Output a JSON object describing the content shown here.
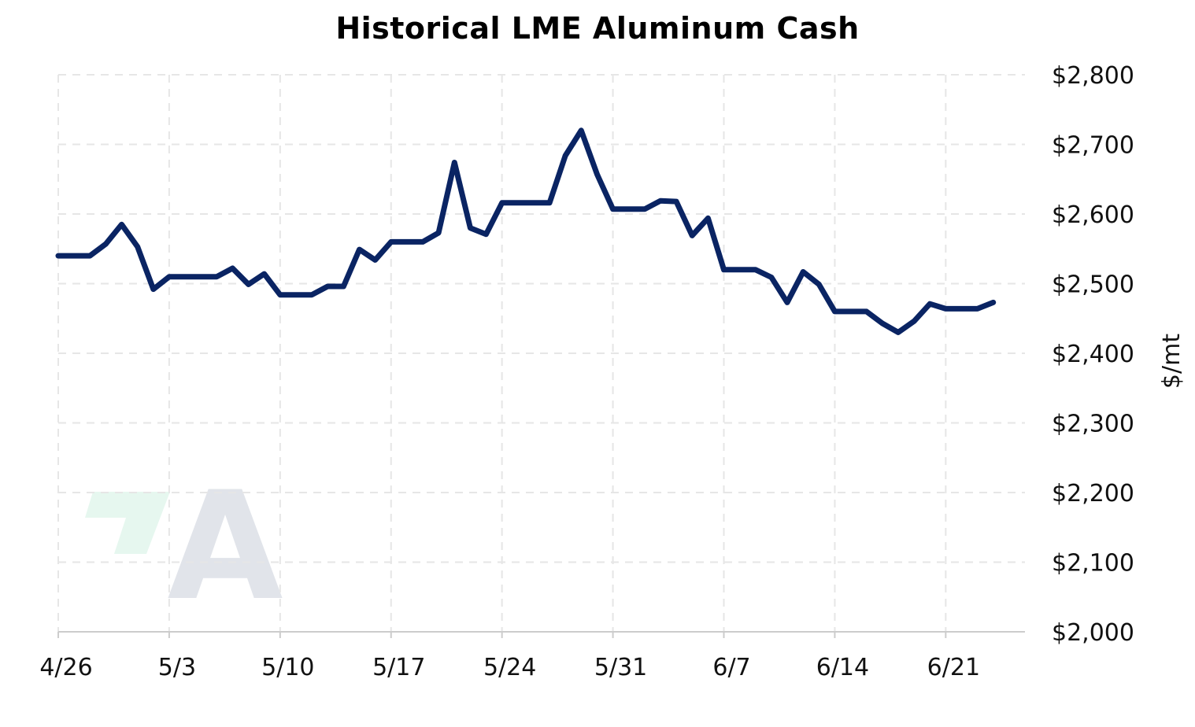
{
  "chart_data": {
    "type": "line",
    "title": "Historical LME Aluminum Cash",
    "xlabel": "",
    "ylabel": "$/mt",
    "ylim": [
      2000,
      2800
    ],
    "y_ticks": [
      2000,
      2100,
      2200,
      2300,
      2400,
      2500,
      2600,
      2700,
      2800
    ],
    "y_tick_labels": [
      "$2,000",
      "$2,100",
      "$2,200",
      "$2,300",
      "$2,400",
      "$2,500",
      "$2,600",
      "$2,700",
      "$2,800"
    ],
    "y_axis_side": "right",
    "x_ticks": [
      "2024-04-26",
      "2024-05-03",
      "2024-05-10",
      "2024-05-17",
      "2024-05-24",
      "2024-05-31",
      "2024-06-07",
      "2024-06-14",
      "2024-06-21"
    ],
    "x_tick_labels": [
      "4/26",
      "5/3",
      "5/10",
      "5/17",
      "5/24",
      "5/31",
      "6/7",
      "6/14",
      "6/21"
    ],
    "xlim": [
      "2024-04-26",
      "2024-06-26"
    ],
    "grid": true,
    "legend": "none",
    "series": [
      {
        "color": "#0a2463",
        "points": [
          [
            "2024-04-26",
            2540
          ],
          [
            "2024-04-27",
            2540
          ],
          [
            "2024-04-28",
            2540
          ],
          [
            "2024-04-29",
            2557
          ],
          [
            "2024-04-30",
            2585
          ],
          [
            "2024-05-01",
            2553
          ],
          [
            "2024-05-02",
            2492
          ],
          [
            "2024-05-03",
            2510
          ],
          [
            "2024-05-04",
            2510
          ],
          [
            "2024-05-05",
            2510
          ],
          [
            "2024-05-06",
            2510
          ],
          [
            "2024-05-07",
            2522
          ],
          [
            "2024-05-08",
            2499
          ],
          [
            "2024-05-09",
            2514
          ],
          [
            "2024-05-10",
            2484
          ],
          [
            "2024-05-11",
            2484
          ],
          [
            "2024-05-12",
            2484
          ],
          [
            "2024-05-13",
            2496
          ],
          [
            "2024-05-14",
            2496
          ],
          [
            "2024-05-15",
            2549
          ],
          [
            "2024-05-16",
            2534
          ],
          [
            "2024-05-17",
            2560
          ],
          [
            "2024-05-18",
            2560
          ],
          [
            "2024-05-19",
            2560
          ],
          [
            "2024-05-20",
            2573
          ],
          [
            "2024-05-21",
            2674
          ],
          [
            "2024-05-22",
            2580
          ],
          [
            "2024-05-23",
            2571
          ],
          [
            "2024-05-24",
            2616
          ],
          [
            "2024-05-25",
            2616
          ],
          [
            "2024-05-26",
            2616
          ],
          [
            "2024-05-27",
            2616
          ],
          [
            "2024-05-28",
            2684
          ],
          [
            "2024-05-29",
            2720
          ],
          [
            "2024-05-30",
            2657
          ],
          [
            "2024-05-31",
            2607
          ],
          [
            "2024-06-01",
            2607
          ],
          [
            "2024-06-02",
            2607
          ],
          [
            "2024-06-03",
            2619
          ],
          [
            "2024-06-04",
            2618
          ],
          [
            "2024-06-05",
            2569
          ],
          [
            "2024-06-06",
            2594
          ],
          [
            "2024-06-07",
            2520
          ],
          [
            "2024-06-08",
            2520
          ],
          [
            "2024-06-09",
            2520
          ],
          [
            "2024-06-10",
            2509
          ],
          [
            "2024-06-11",
            2473
          ],
          [
            "2024-06-12",
            2517
          ],
          [
            "2024-06-13",
            2499
          ],
          [
            "2024-06-14",
            2460
          ],
          [
            "2024-06-15",
            2460
          ],
          [
            "2024-06-16",
            2460
          ],
          [
            "2024-06-17",
            2443
          ],
          [
            "2024-06-18",
            2430
          ],
          [
            "2024-06-19",
            2446
          ],
          [
            "2024-06-20",
            2471
          ],
          [
            "2024-06-21",
            2464
          ],
          [
            "2024-06-22",
            2464
          ],
          [
            "2024-06-23",
            2464
          ],
          [
            "2024-06-24",
            2473
          ]
        ]
      }
    ]
  },
  "watermark": {
    "letter": "A",
    "accent_color": "#e6f7ef",
    "letter_color": "#e1e4ea"
  }
}
